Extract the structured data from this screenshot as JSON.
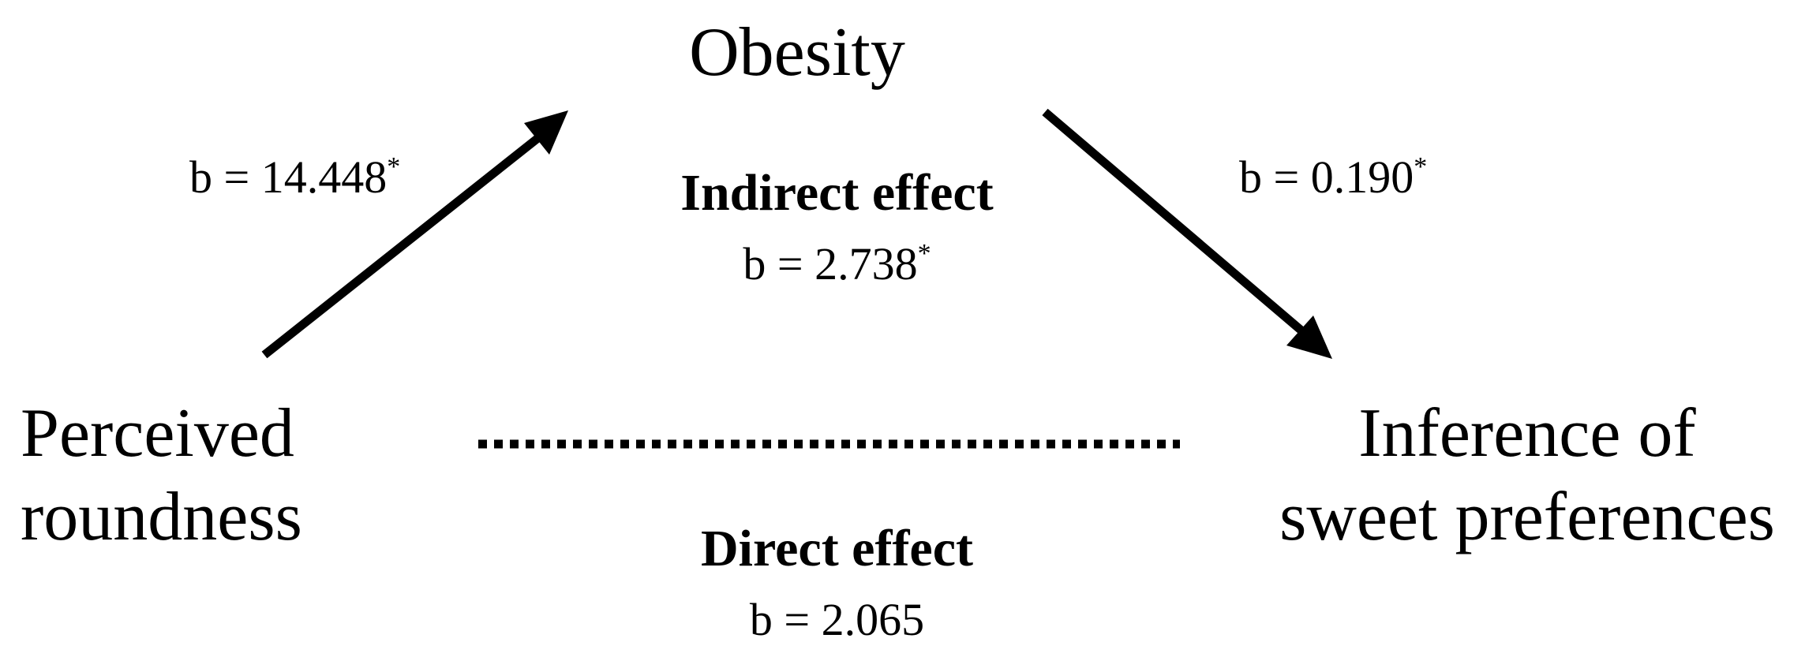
{
  "diagram": {
    "mediator": {
      "label": "Obesity"
    },
    "predictor": {
      "line1": "Perceived",
      "line2": "roundness"
    },
    "outcome": {
      "line1": "Inference of",
      "line2": "sweet preferences"
    },
    "path_a": {
      "text": "b = 14.448",
      "mark": "*"
    },
    "path_b": {
      "text": "b = 0.190",
      "mark": "*"
    },
    "indirect_effect": {
      "title": "Indirect effect",
      "text": "b = 2.738",
      "mark": "*"
    },
    "direct_effect": {
      "title": "Direct effect",
      "text": "b = 2.065"
    },
    "line_color": "#000000"
  }
}
